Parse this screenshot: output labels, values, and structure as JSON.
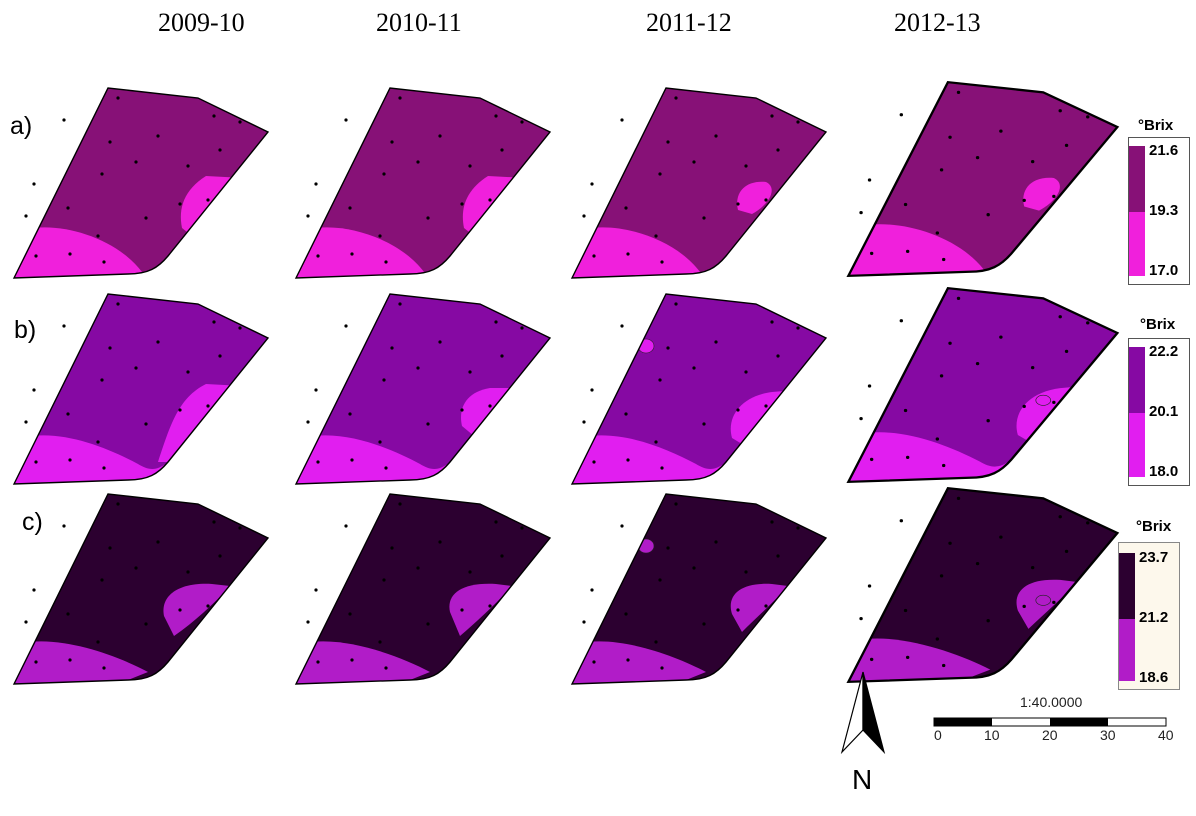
{
  "columns": [
    "2009-10",
    "2010-11",
    "2011-12",
    "2012-13"
  ],
  "rows": [
    {
      "label": "a)",
      "colors": {
        "high": "#871177",
        "low": "#f020dc"
      },
      "legend": {
        "title": "°Brix",
        "max": "21.6",
        "mid": "19.3",
        "min": "17.0",
        "bg": "#ffffff"
      }
    },
    {
      "label": "b)",
      "colors": {
        "high": "#8609a3",
        "low": "#e11ef0"
      },
      "legend": {
        "title": "°Brix",
        "max": "22.2",
        "mid": "20.1",
        "min": "18.0",
        "bg": "#ffffff"
      }
    },
    {
      "label": "c)",
      "colors": {
        "high": "#2c0030",
        "low": "#b11cc8"
      },
      "legend": {
        "title": "°Brix",
        "max": "23.7",
        "mid": "21.2",
        "min": "18.6",
        "bg": "#fdf8ec"
      }
    }
  ],
  "scale": {
    "ratio": "1:40.0000",
    "ticks": [
      "0",
      "10",
      "20",
      "30",
      "40"
    ]
  },
  "north": {
    "label": "N",
    "icon": "north-arrow-icon"
  }
}
